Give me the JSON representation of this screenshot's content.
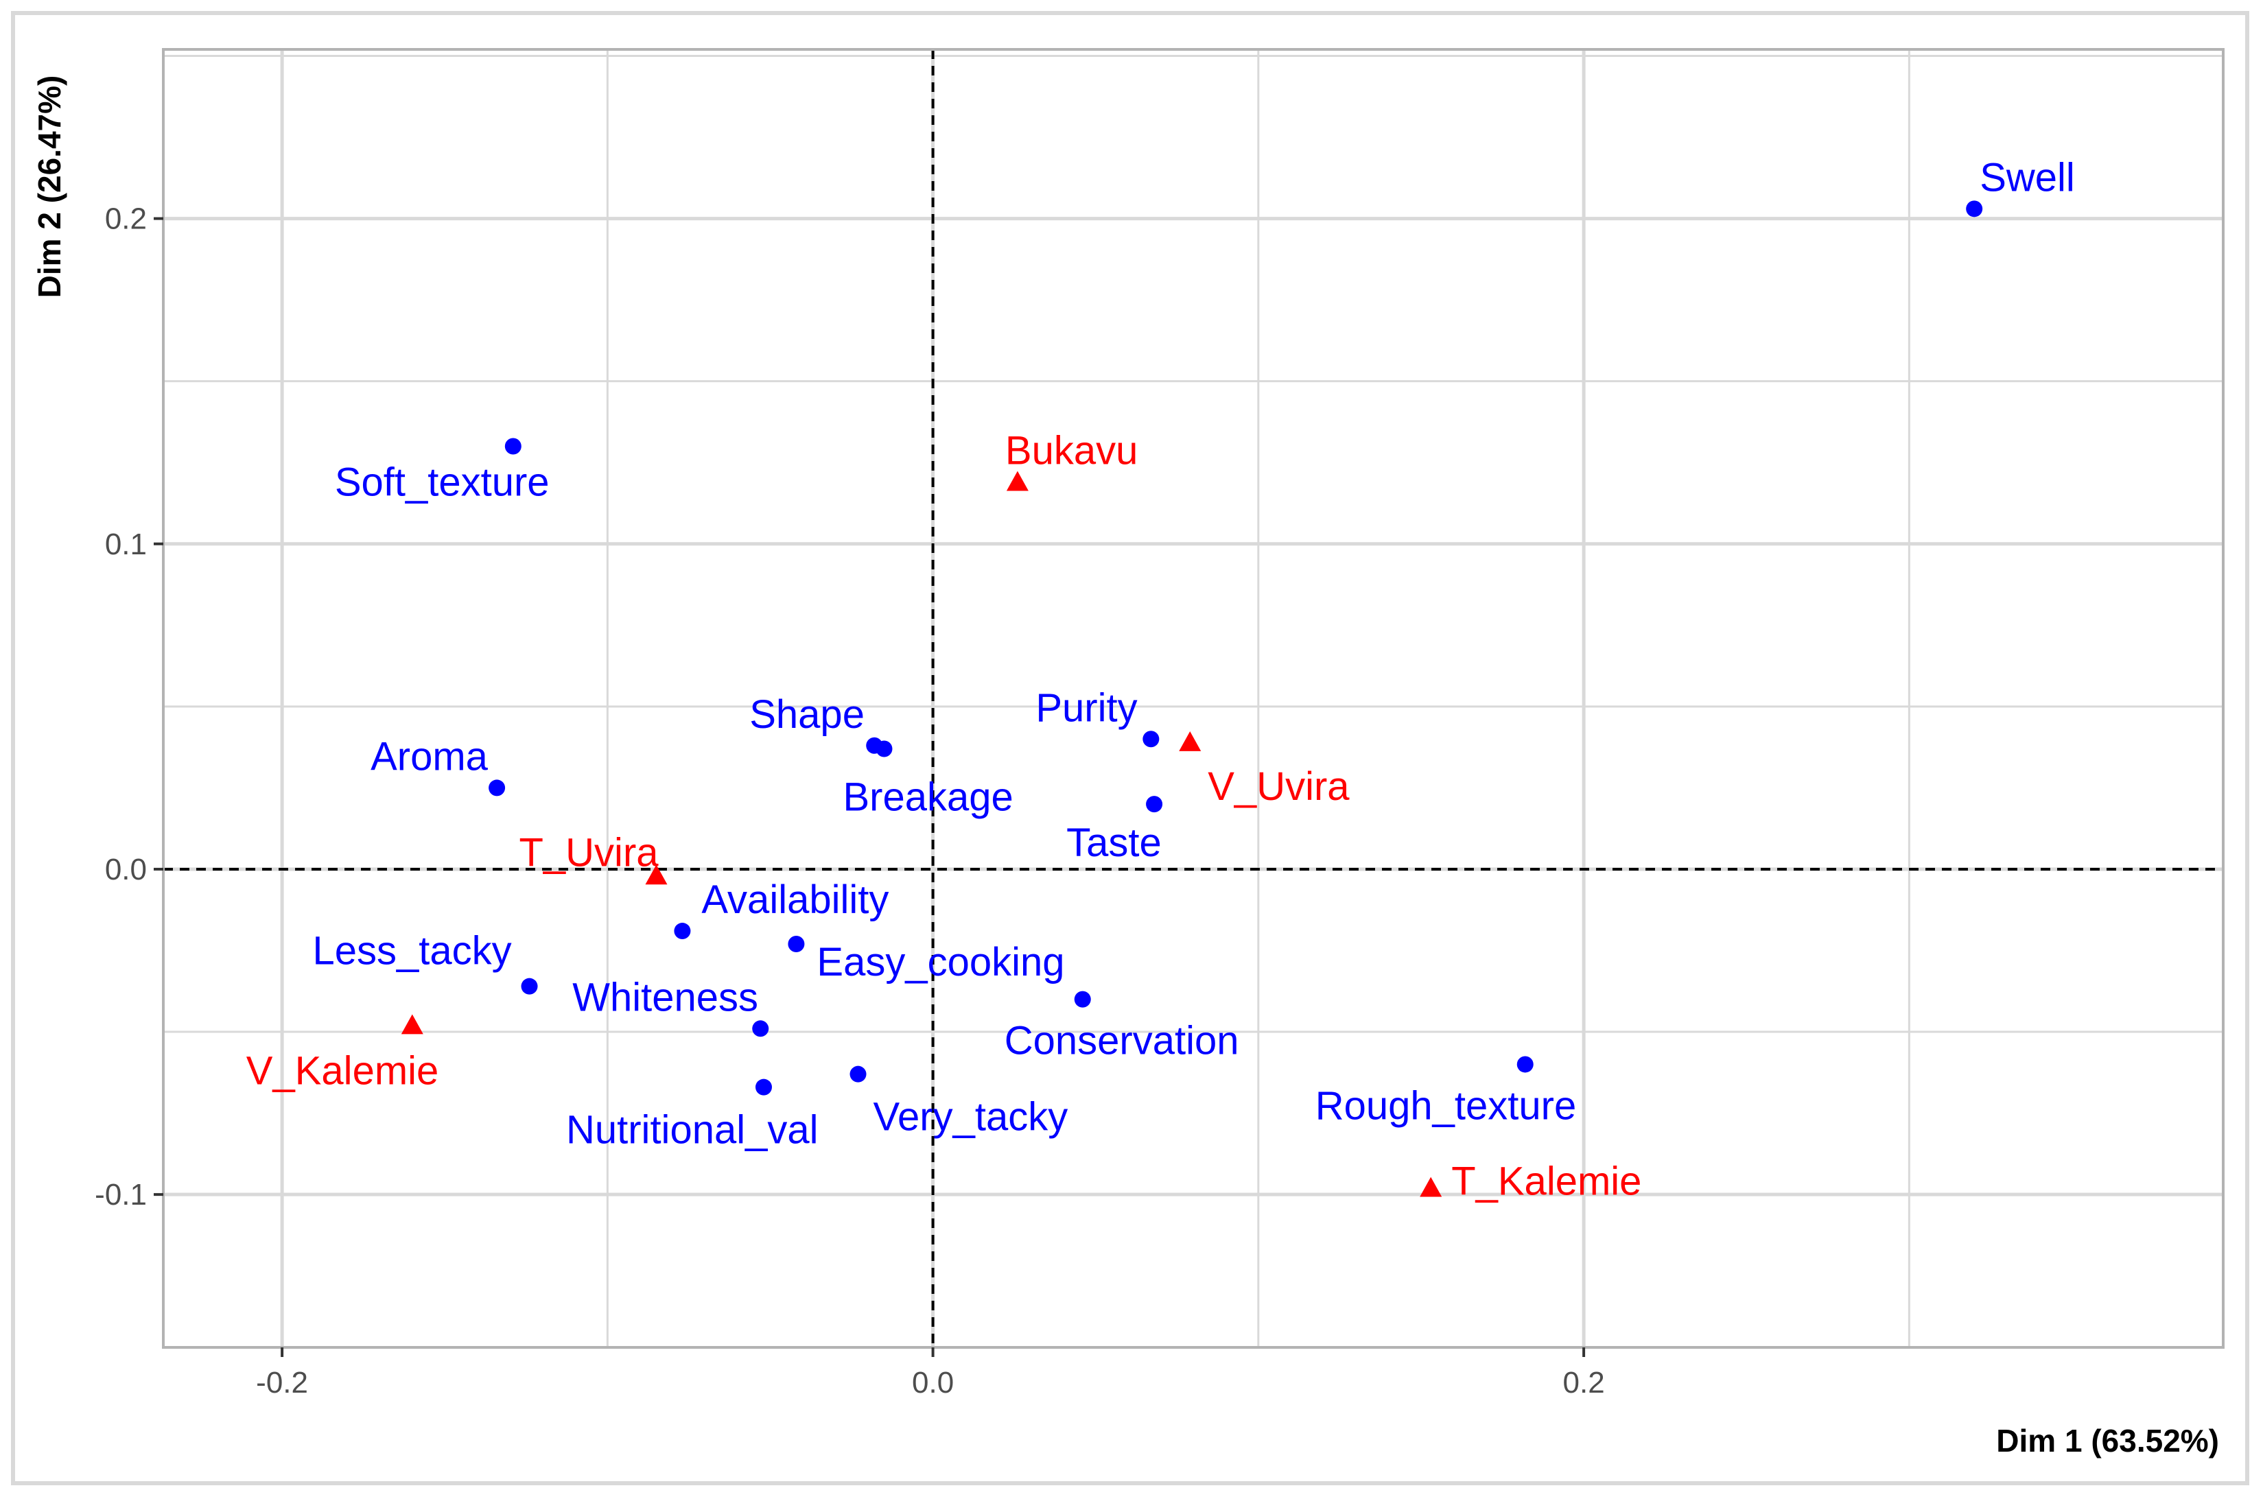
{
  "chart_data": {
    "type": "scatter",
    "xlabel": "Dim 1 (63.52%)",
    "ylabel": "Dim 2 (26.47%)",
    "xlim": [
      -0.2365,
      0.3965
    ],
    "ylim": [
      -0.147,
      0.252
    ],
    "x_ticks": [
      -0.2,
      0.0,
      0.2
    ],
    "x_tick_labels": [
      "-0.2",
      "0.0",
      "0.2"
    ],
    "y_ticks": [
      -0.1,
      0.0,
      0.1,
      0.2
    ],
    "y_tick_labels": [
      "-0.1",
      "0.0",
      "0.1",
      "0.2"
    ],
    "grid": true,
    "reference_lines": {
      "x": 0,
      "y": 0,
      "style": "dashed"
    },
    "colors": {
      "attributes": "#0000ff",
      "origins": "#ff0000",
      "grid": "#d9d9d9",
      "panel_border": "#b3b3b3"
    },
    "series": [
      {
        "marker": "circle",
        "color": "#0000ff",
        "points": [
          {
            "label": "Swell",
            "x": 0.32,
            "y": 0.203
          },
          {
            "label": "Soft_texture",
            "x": -0.129,
            "y": 0.13
          },
          {
            "label": "Shape",
            "x": -0.018,
            "y": 0.038
          },
          {
            "label": "Breakage",
            "x": -0.015,
            "y": 0.037
          },
          {
            "label": "Purity",
            "x": 0.067,
            "y": 0.04
          },
          {
            "label": "Aroma",
            "x": -0.134,
            "y": 0.025
          },
          {
            "label": "Taste",
            "x": 0.068,
            "y": 0.02
          },
          {
            "label": "Availability",
            "x": -0.077,
            "y": -0.019
          },
          {
            "label": "Easy_cooking",
            "x": -0.042,
            "y": -0.023
          },
          {
            "label": "Less_tacky",
            "x": -0.124,
            "y": -0.036
          },
          {
            "label": "Conservation",
            "x": 0.046,
            "y": -0.04
          },
          {
            "label": "Whiteness",
            "x": -0.053,
            "y": -0.049
          },
          {
            "label": "Rough_texture",
            "x": 0.182,
            "y": -0.06
          },
          {
            "label": "Nutritional_val",
            "x": -0.052,
            "y": -0.067
          },
          {
            "label": "Very_tacky",
            "x": -0.023,
            "y": -0.063
          }
        ]
      },
      {
        "marker": "triangle",
        "color": "#ff0000",
        "points": [
          {
            "label": "Bukavu",
            "x": 0.026,
            "y": 0.119
          },
          {
            "label": "V_Uvira",
            "x": 0.079,
            "y": 0.039
          },
          {
            "label": "T_Uvira",
            "x": -0.085,
            "y": -0.002
          },
          {
            "label": "V_Kalemie",
            "x": -0.16,
            "y": -0.048
          },
          {
            "label": "T_Kalemie",
            "x": 0.153,
            "y": -0.098
          }
        ]
      }
    ]
  }
}
